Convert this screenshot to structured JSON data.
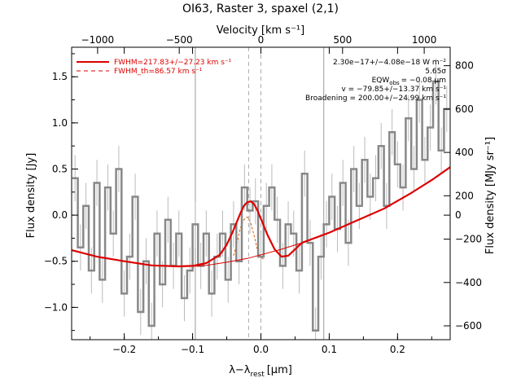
{
  "chart_data": {
    "type": "line",
    "title": "OI63, Raster 3, spaxel (2,1)",
    "xlabel": "λ−λ",
    "xlabel_sub": "rest",
    "xlabel_unit": "[μm]",
    "ylabel_left": "Flux density [Jy]",
    "ylabel_right": "Flux density [MJy sr⁻¹]",
    "top_axis_label": "Velocity [km s⁻¹]",
    "xlim": [
      -0.277,
      0.277
    ],
    "ylim": [
      -1.35,
      1.82
    ],
    "x_ticks": [
      -0.2,
      -0.1,
      0.0,
      0.1,
      0.2
    ],
    "x_tick_labels": [
      "−0.2",
      "−0.1",
      "0.0",
      "0.1",
      "0.2"
    ],
    "y_ticks": [
      -1.0,
      -0.5,
      0.0,
      0.5,
      1.0,
      1.5
    ],
    "y_tick_labels": [
      "−1.0",
      "−0.5",
      "0.0",
      "0.5",
      "1.0",
      "1.5"
    ],
    "top_ticks_data_x": [
      -0.239,
      -0.1195,
      0.0,
      0.1195,
      0.239
    ],
    "top_tick_labels": [
      "−1000",
      "−500",
      "0",
      "500",
      "1000"
    ],
    "right_ticks_data_y": [
      -1.2,
      -0.73,
      -0.26,
      0.0,
      0.21,
      0.68,
      1.15,
      1.62
    ],
    "right_tick_labels": [
      "−600",
      "−400",
      "−200",
      "0",
      "200",
      "400",
      "600",
      "800"
    ],
    "vertical_lines_solid": [
      -0.096,
      0.092
    ],
    "vertical_lines_dashed": [
      -0.018,
      0.0
    ],
    "legend": [
      {
        "label": "FWHM=217.83+/−27.23 km s⁻¹",
        "style": "solid"
      },
      {
        "label": "FWHM_th=86.57 km s⁻¹",
        "style": "dashed"
      }
    ],
    "annotations": [
      "2.30e−17+/−4.08e−18 W m⁻²",
      "5.65σ",
      "EQW",
      "obs",
      "= −0.08 μm",
      "v = −79.85+/−13.37 km s⁻¹",
      "Broadening = 200.00+/−24.99 km s⁻¹"
    ],
    "series": [
      {
        "name": "spectrum",
        "x": [
          -0.272,
          -0.264,
          -0.256,
          -0.248,
          -0.24,
          -0.232,
          -0.224,
          -0.216,
          -0.208,
          -0.2,
          -0.192,
          -0.184,
          -0.176,
          -0.168,
          -0.16,
          -0.152,
          -0.144,
          -0.136,
          -0.128,
          -0.12,
          -0.112,
          -0.104,
          -0.096,
          -0.088,
          -0.08,
          -0.072,
          -0.064,
          -0.056,
          -0.048,
          -0.04,
          -0.032,
          -0.024,
          -0.016,
          -0.008,
          0.0,
          0.008,
          0.016,
          0.024,
          0.032,
          0.04,
          0.048,
          0.056,
          0.064,
          0.072,
          0.08,
          0.088,
          0.096,
          0.104,
          0.112,
          0.12,
          0.128,
          0.136,
          0.144,
          0.152,
          0.16,
          0.168,
          0.176,
          0.184,
          0.192,
          0.2,
          0.208,
          0.216,
          0.224,
          0.232,
          0.24,
          0.248,
          0.256,
          0.264,
          0.272
        ],
        "y": [
          0.4,
          -0.35,
          0.1,
          -0.6,
          0.35,
          -0.7,
          0.3,
          -0.2,
          0.5,
          -0.85,
          -0.45,
          0.2,
          -1.05,
          -0.5,
          -1.2,
          -0.2,
          -0.75,
          -0.05,
          -0.55,
          -0.2,
          -0.9,
          -0.6,
          -0.1,
          -0.55,
          -0.2,
          -0.85,
          -0.45,
          -0.2,
          -0.7,
          -0.1,
          -0.5,
          0.3,
          0.05,
          0.15,
          -0.45,
          0.1,
          0.3,
          -0.05,
          -0.55,
          -0.1,
          -0.2,
          -0.6,
          0.45,
          -0.3,
          -1.25,
          -0.45,
          -0.1,
          0.2,
          -0.15,
          0.35,
          -0.3,
          0.5,
          0.1,
          0.6,
          0.2,
          0.4,
          0.75,
          0.1,
          0.9,
          0.55,
          0.3,
          1.05,
          0.5,
          1.25,
          0.6,
          0.95,
          1.45,
          0.7,
          1.15
        ],
        "err": 0.25
      },
      {
        "name": "continuum",
        "x": [
          -0.277,
          -0.24,
          -0.2,
          -0.16,
          -0.12,
          -0.1,
          -0.08,
          -0.05,
          -0.02,
          0.0,
          0.03,
          0.06,
          0.1,
          0.14,
          0.18,
          0.22,
          0.25,
          0.277
        ],
        "y": [
          -0.38,
          -0.45,
          -0.5,
          -0.545,
          -0.555,
          -0.555,
          -0.545,
          -0.51,
          -0.47,
          -0.43,
          -0.37,
          -0.3,
          -0.19,
          -0.06,
          0.07,
          0.24,
          0.38,
          0.52
        ]
      },
      {
        "name": "fit",
        "x": [
          -0.277,
          -0.24,
          -0.2,
          -0.16,
          -0.12,
          -0.1,
          -0.08,
          -0.06,
          -0.05,
          -0.04,
          -0.03,
          -0.025,
          -0.02,
          -0.015,
          -0.01,
          -0.005,
          0.0,
          0.005,
          0.01,
          0.02,
          0.03,
          0.04,
          0.06,
          0.1,
          0.14,
          0.18,
          0.22,
          0.25,
          0.277
        ],
        "y": [
          -0.38,
          -0.45,
          -0.5,
          -0.545,
          -0.555,
          -0.55,
          -0.52,
          -0.43,
          -0.32,
          -0.16,
          0.02,
          0.1,
          0.14,
          0.15,
          0.12,
          0.05,
          -0.04,
          -0.13,
          -0.22,
          -0.37,
          -0.45,
          -0.44,
          -0.3,
          -0.19,
          -0.06,
          0.07,
          0.24,
          0.38,
          0.52
        ]
      },
      {
        "name": "FWHM_th",
        "x": [
          -0.04,
          -0.035,
          -0.03,
          -0.025,
          -0.02,
          -0.015,
          -0.01,
          -0.005,
          0.0,
          0.005
        ],
        "y": [
          -0.44,
          -0.3,
          -0.14,
          -0.05,
          -0.02,
          -0.08,
          -0.22,
          -0.38,
          -0.46,
          -0.48
        ]
      }
    ]
  }
}
